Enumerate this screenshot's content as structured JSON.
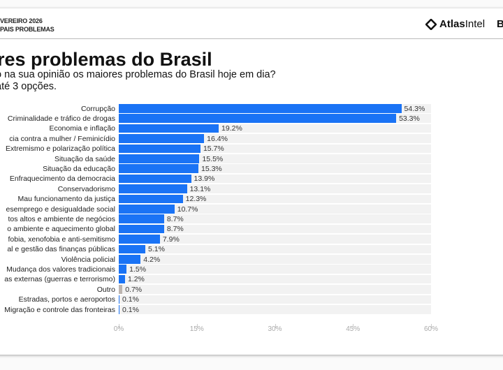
{
  "header": {
    "line1": "VEREIRO 2026",
    "line2": "PAIS PROBLEMAS",
    "logo_bold": "Atlas",
    "logo_light": "Intel",
    "right_cut": "B"
  },
  "title": "res problemas do Brasil",
  "subtitle1": "o na sua opinião os maiores problemas do Brasil hoje em dia?",
  "subtitle2": " até 3 opções.",
  "colors": {
    "bar": "#1a73f5",
    "other": "#bdb5b0",
    "track": "#f2f2f2"
  },
  "chart_data": {
    "type": "bar",
    "orientation": "horizontal",
    "title": "res problemas do Brasil",
    "xlim": [
      0,
      60
    ],
    "xticks": [
      "0%",
      "15%",
      "30%",
      "45%",
      "60%"
    ],
    "xtick_values": [
      0,
      15,
      30,
      45,
      60
    ],
    "categories": [
      "Corrupção",
      "Criminalidade e tráfico de drogas",
      "Economia e inflação",
      "cia contra a mulher / Feminicídio",
      "Extremismo e polarização política",
      "Situação da saúde",
      "Situação da educação",
      "Enfraquecimento da democracia",
      "Conservadorismo",
      "Mau funcionamento da justiça",
      "esemprego e desigualdade social",
      "tos altos e ambiente de negócios",
      "o ambiente e aquecimento global",
      "fobia, xenofobia e anti-semitismo",
      "al e gestão das finanças públicas",
      "Violência policial",
      "Mudança dos valores tradicionais",
      "as externas (guerras e terrorismo)",
      "Outro",
      "Estradas, portos e aeroportos",
      "Migração e controle das fronteiras"
    ],
    "values": [
      54.3,
      53.3,
      19.2,
      16.4,
      15.7,
      15.5,
      15.3,
      13.9,
      13.1,
      12.3,
      10.7,
      8.7,
      8.7,
      7.9,
      5.1,
      4.2,
      1.5,
      1.2,
      0.7,
      0.1,
      0.1
    ],
    "labels": [
      "54.3%",
      "53.3%",
      "19.2%",
      "16.4%",
      "15.7%",
      "15.5%",
      "15.3%",
      "13.9%",
      "13.1%",
      "12.3%",
      "10.7%",
      "8.7%",
      "8.7%",
      "7.9%",
      "5.1%",
      "4.2%",
      "1.5%",
      "1.2%",
      "0.7%",
      "0.1%",
      "0.1%"
    ]
  }
}
